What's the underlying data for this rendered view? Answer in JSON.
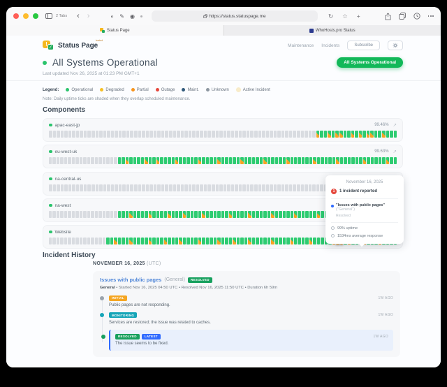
{
  "browser": {
    "tabs_label": "2 Tabs",
    "url": "https://status.statuspage.me",
    "tab1": "Status Page",
    "tab2": "WhoHosts.pro Status"
  },
  "icons": {
    "back": "‹",
    "forward": "›",
    "reload": "↻",
    "star": "☆",
    "plus": "+",
    "content_blocker": "◐",
    "extension_pen": "✎",
    "extension_badge": "◉",
    "expand": "↗",
    "logo_exclamation": "!",
    "logo_check": "✓"
  },
  "header": {
    "logo_text": "Status Page",
    "logo_superscript": "hosted",
    "nav_maintenance": "Maintenance",
    "nav_incidents": "Incidents",
    "subscribe_label": "Subscribe"
  },
  "status": {
    "title": "All Systems Operational",
    "last_updated": "Last updated Nov 26, 2025 at 01:23 PM GMT+1",
    "pill_label": "All Systems Operational"
  },
  "legend": {
    "label": "Legend:",
    "items": [
      {
        "label": "Operational",
        "color": "#2bc46d"
      },
      {
        "label": "Degraded",
        "color": "#f6c026"
      },
      {
        "label": "Partial",
        "color": "#f7941e"
      },
      {
        "label": "Outage",
        "color": "#e5483d"
      },
      {
        "label": "Maint.",
        "color": "#30597a"
      },
      {
        "label": "Unknown",
        "color": "#8d97a1"
      },
      {
        "label": "Active Incident",
        "color": "#f8ecca"
      }
    ],
    "note": "Note: Daily uptime ticks are shaded when they overlap scheduled maintenance."
  },
  "components": {
    "heading": "Components",
    "tick_colors": {
      "empty": "#d9dce1",
      "operational": "#2ecc71",
      "maintenance_shade": "#f7a325"
    },
    "rows": [
      {
        "name": "apac-east-jp",
        "uptime": "99.46%",
        "ticks": "xxxxxxxxxxxxxxxxxxxxxxxxxxxxxxxxxxxxxxxxxxxxxxxxxxxxxxxxxxxxxxxxxxxxxmggmgmmggmgmgmmggmggg"
      },
      {
        "name": "eu-west-uk",
        "uptime": "99.63%",
        "ticks": "xxxxxxxxxxxxxxxxxxggmggggmggmggggmgggggmggggmgggggmgggggmgggggmggggggmgggggmggggggmgggggmgg"
      },
      {
        "name": "na-central-us",
        "uptime": "",
        "ticks": "xxxxxxxxxxxxxxxxxxxxxxxxxxxxxxxxxxxxxxxxxxxxxxxxxxxxxxxxxxxxxxxxxxxxxxxxxxxxxxxxxxxxxggggg"
      },
      {
        "name": "na-west",
        "uptime": "",
        "ticks": "xxxxxxxxxxxxxxxxxxgggmggggmggggmgggmggggmggggggmggggmgggggmgggggmgggggmggggmggggggmggggmggg"
      },
      {
        "name": "Website",
        "uptime": "",
        "ticks": "xxxxxxxxxxxxxxxggmgggmggggmgggmgggmggggmggggmgggmgggmgggggmggggmggggmgggggmhhgmgggmgggmgggg"
      }
    ]
  },
  "tooltip": {
    "date": "November 16, 2025",
    "count_badge": "1",
    "count_text": "1 incident reported",
    "incident_name": "\"Issues with public pages\"",
    "incident_scope": "(\"General\")",
    "incident_status": "Resolved",
    "uptime": "99% uptime",
    "response": "1534ms average response"
  },
  "incident_history": {
    "heading": "Incident History",
    "date_heading": "NOVEMBER 16, 2025",
    "date_suffix": "(UTC)",
    "incident": {
      "title": "Issues with public pages",
      "scope": "(General)",
      "status_badge": "RESOLVED",
      "meta_bold": "General",
      "meta_rest": " • Started Nov 16, 2025 04:50 UTC • Resolved Nov 16, 2025 11:50 UTC • Duration 6h 59m",
      "updates": [
        {
          "badge": "INITIAL",
          "time": "1W AGO",
          "text": "Public pages are not responding.",
          "dot_color": "#9aa3ad"
        },
        {
          "badge": "MONITORING",
          "time": "1W AGO",
          "text": "Services are restored; the issue was related to caches.",
          "dot_color": "#16a5b8"
        },
        {
          "badge": "RESOLVED",
          "badge2": "LATEST",
          "time": "1W AGO",
          "text": "The issue seems to be fixed.",
          "dot_color": "#17a05e"
        }
      ]
    }
  },
  "colors": {
    "brand_yellow": "#f4b81e",
    "brand_green": "#27ae60",
    "pill_green": "#12b859",
    "link_blue": "#4f86d8",
    "badge_resolved": "#17a05e",
    "badge_initial": "#f5a623",
    "badge_monitoring": "#16a5b8",
    "badge_latest": "#2f6bff",
    "incident_red": "#e5483d"
  }
}
